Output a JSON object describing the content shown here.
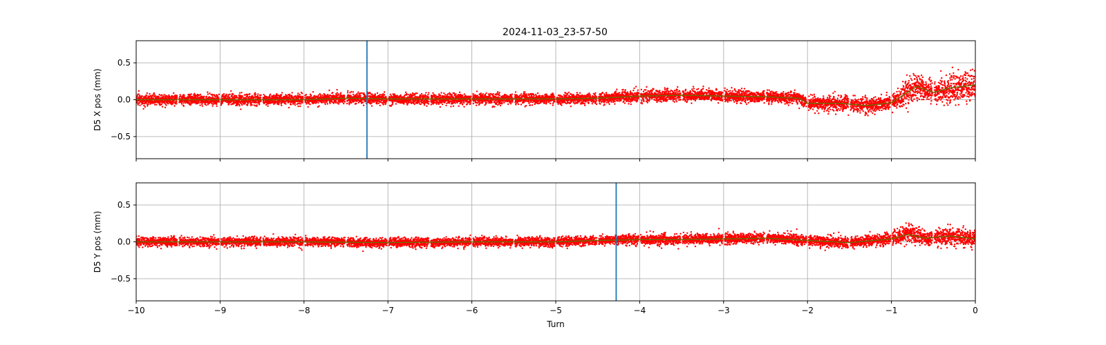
{
  "figure_title": "2024-11-03_23-57-50",
  "colors": {
    "scatter": "#ff0000",
    "smooth": "#6b6b00",
    "marker_line": "#1f77b4",
    "grid": "#b0b0b0"
  },
  "chart_data": [
    {
      "type": "scatter",
      "title": "2024-11-03_23-57-50",
      "xlabel": "",
      "ylabel": "D5 X pos (mm)",
      "xlim": [
        -10,
        0
      ],
      "ylim": [
        -0.8,
        0.8
      ],
      "xticks": [
        -10,
        -9,
        -8,
        -7,
        -6,
        -5,
        -4,
        -3,
        -2,
        -1,
        0
      ],
      "xtick_labels_shown": false,
      "yticks": [
        -0.5,
        0.0,
        0.5
      ],
      "ytick_labels": [
        "−0.5",
        "0.0",
        "0.5"
      ],
      "grid": true,
      "marker_x": -7.25,
      "segment_gaps": [
        -9.5,
        -9,
        -8.5,
        -8,
        -7.5,
        -7,
        -6.5,
        -6,
        -5.5,
        -5,
        -4.5,
        -4,
        -3.5,
        -3,
        -2.5,
        -2,
        -1.5,
        -1,
        -0.5
      ],
      "trend": {
        "x": [
          -10,
          -9,
          -8,
          -7.5,
          -7,
          -6,
          -5,
          -4.5,
          -4,
          -3.5,
          -3,
          -2.5,
          -2.1,
          -2,
          -1.6,
          -1.3,
          -1,
          -0.9,
          -0.7,
          -0.5,
          -0.3,
          0
        ],
        "y": [
          0.0,
          0.0,
          0.0,
          0.02,
          0.01,
          0.01,
          0.01,
          0.02,
          0.05,
          0.06,
          0.05,
          0.04,
          0.02,
          -0.05,
          -0.05,
          -0.08,
          -0.04,
          0.03,
          0.18,
          0.1,
          0.16,
          0.2
        ]
      },
      "spread": {
        "x": [
          -10,
          -4.5,
          -4,
          -2.1,
          -2,
          -1.5,
          -1,
          -0.9,
          -0.8,
          -0.7,
          -0.5,
          -0.3,
          0
        ],
        "y": [
          0.07,
          0.07,
          0.08,
          0.08,
          0.09,
          0.1,
          0.1,
          0.14,
          0.2,
          0.14,
          0.14,
          0.2,
          0.2
        ]
      }
    },
    {
      "type": "scatter",
      "xlabel": "Turn",
      "ylabel": "D5 Y pos (mm)",
      "xlim": [
        -10,
        0
      ],
      "ylim": [
        -0.8,
        0.8
      ],
      "xticks": [
        -10,
        -9,
        -8,
        -7,
        -6,
        -5,
        -4,
        -3,
        -2,
        -1,
        0
      ],
      "xtick_labels": [
        "−10",
        "−9",
        "−8",
        "−7",
        "−6",
        "−5",
        "−4",
        "−3",
        "−2",
        "−1",
        "0"
      ],
      "yticks": [
        -0.5,
        0.0,
        0.5
      ],
      "ytick_labels": [
        "−0.5",
        "0.0",
        "0.5"
      ],
      "grid": true,
      "marker_x": -4.28,
      "segment_gaps": [
        -9.5,
        -9,
        -8.5,
        -8,
        -7.5,
        -7,
        -6.5,
        -6,
        -5.5,
        -5,
        -4.5,
        -4,
        -3.5,
        -3,
        -2.5,
        -2,
        -1.5,
        -1,
        -0.5
      ],
      "trend": {
        "x": [
          -10,
          -8,
          -7,
          -6,
          -5,
          -4.5,
          -4,
          -3.5,
          -3,
          -2.5,
          -2,
          -1.5,
          -1.2,
          -1,
          -0.8,
          -0.6,
          -0.3,
          0
        ],
        "y": [
          0.0,
          0.0,
          -0.01,
          0.0,
          0.0,
          0.02,
          0.03,
          0.03,
          0.04,
          0.05,
          0.02,
          -0.01,
          0.02,
          0.04,
          0.1,
          0.05,
          0.08,
          0.04
        ]
      },
      "spread": {
        "x": [
          -10,
          -4.5,
          -4,
          -1.2,
          -1,
          -0.8,
          -0.6,
          -0.3,
          0
        ],
        "y": [
          0.06,
          0.06,
          0.07,
          0.07,
          0.09,
          0.14,
          0.09,
          0.13,
          0.1
        ]
      }
    }
  ]
}
